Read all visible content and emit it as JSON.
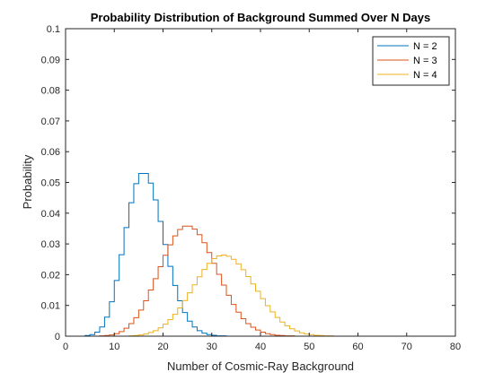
{
  "chart_data": {
    "type": "line",
    "style": "stairs",
    "title": "Probability Distribution of Background Summed Over N Days",
    "xlabel": "Number of Cosmic-Ray Background",
    "ylabel": "Probability",
    "xlim": [
      0,
      80
    ],
    "ylim": [
      0,
      0.1
    ],
    "x_ticks": [
      0,
      10,
      20,
      30,
      40,
      50,
      60,
      70,
      80
    ],
    "y_ticks": [
      0,
      0.01,
      0.02,
      0.03,
      0.04,
      0.05,
      0.06,
      0.07,
      0.08,
      0.09,
      0.1
    ],
    "x_tick_labels": [
      "0",
      "10",
      "20",
      "30",
      "40",
      "50",
      "60",
      "70",
      "80"
    ],
    "y_tick_labels": [
      "0",
      "0.01",
      "0.02",
      "0.03",
      "0.04",
      "0.05",
      "0.06",
      "0.07",
      "0.08",
      "0.09",
      "0.1"
    ],
    "grid": false,
    "legend_position": "top-right",
    "series": [
      {
        "name": "N = 2",
        "color": "#0072BD",
        "x": [
          0,
          1,
          2,
          3,
          4,
          5,
          6,
          7,
          8,
          9,
          10,
          11,
          12,
          13,
          14,
          15,
          16,
          17,
          18,
          19,
          20,
          21,
          22,
          23,
          24,
          25,
          26,
          27,
          28,
          29,
          30,
          31,
          32,
          33,
          34,
          35,
          36,
          37,
          38,
          39,
          40
        ],
        "y": [
          0,
          0,
          0,
          0,
          0.0002,
          0.0005,
          0.0013,
          0.003,
          0.0062,
          0.0112,
          0.0181,
          0.0265,
          0.0353,
          0.0434,
          0.0496,
          0.0529,
          0.0529,
          0.0498,
          0.0443,
          0.0373,
          0.0298,
          0.0227,
          0.0165,
          0.0115,
          0.0077,
          0.0049,
          0.003,
          0.0018,
          0.001,
          0.0005,
          0.0003,
          0.0001,
          0.0001,
          0,
          0,
          0,
          0,
          0,
          0,
          0,
          0
        ]
      },
      {
        "name": "N = 3",
        "color": "#D95319",
        "x": [
          0,
          1,
          2,
          3,
          4,
          5,
          6,
          7,
          8,
          9,
          10,
          11,
          12,
          13,
          14,
          15,
          16,
          17,
          18,
          19,
          20,
          21,
          22,
          23,
          24,
          25,
          26,
          27,
          28,
          29,
          30,
          31,
          32,
          33,
          34,
          35,
          36,
          37,
          38,
          39,
          40,
          41,
          42,
          43,
          44,
          45,
          46,
          47,
          48,
          49,
          50,
          51,
          52,
          53,
          54,
          55
        ],
        "y": [
          0,
          0,
          0,
          0,
          0,
          0,
          0,
          0.0001,
          0.0002,
          0.0004,
          0.0008,
          0.0015,
          0.0026,
          0.0041,
          0.006,
          0.0085,
          0.0115,
          0.015,
          0.0187,
          0.0226,
          0.0263,
          0.0297,
          0.0326,
          0.0347,
          0.0358,
          0.0358,
          0.0348,
          0.033,
          0.0304,
          0.0272,
          0.0237,
          0.0201,
          0.0166,
          0.0133,
          0.0103,
          0.0078,
          0.0057,
          0.0041,
          0.0029,
          0.002,
          0.0013,
          0.0008,
          0.0005,
          0.0003,
          0.0002,
          0.0001,
          0.0001,
          0,
          0,
          0,
          0,
          0,
          0,
          0,
          0,
          0
        ]
      },
      {
        "name": "N = 4",
        "color": "#EDB120",
        "x": [
          0,
          1,
          2,
          3,
          4,
          5,
          6,
          7,
          8,
          9,
          10,
          11,
          12,
          13,
          14,
          15,
          16,
          17,
          18,
          19,
          20,
          21,
          22,
          23,
          24,
          25,
          26,
          27,
          28,
          29,
          30,
          31,
          32,
          33,
          34,
          35,
          36,
          37,
          38,
          39,
          40,
          41,
          42,
          43,
          44,
          45,
          46,
          47,
          48,
          49,
          50,
          51,
          52,
          53,
          54,
          55,
          56,
          57,
          58,
          59,
          60
        ],
        "y": [
          0,
          0,
          0,
          0,
          0,
          0,
          0,
          0,
          0,
          0,
          0,
          0,
          0,
          0.0001,
          0.0002,
          0.0004,
          0.0007,
          0.0012,
          0.0018,
          0.0027,
          0.0039,
          0.0054,
          0.0071,
          0.0092,
          0.0116,
          0.0141,
          0.0167,
          0.0193,
          0.0217,
          0.0237,
          0.0252,
          0.0261,
          0.0264,
          0.026,
          0.025,
          0.0235,
          0.0216,
          0.0194,
          0.017,
          0.0146,
          0.0122,
          0.0099,
          0.0079,
          0.0061,
          0.0046,
          0.0034,
          0.0024,
          0.0017,
          0.0011,
          0.0007,
          0.0005,
          0.0003,
          0.0002,
          0.0001,
          0.0001,
          0,
          0,
          0,
          0,
          0,
          0
        ]
      }
    ]
  }
}
